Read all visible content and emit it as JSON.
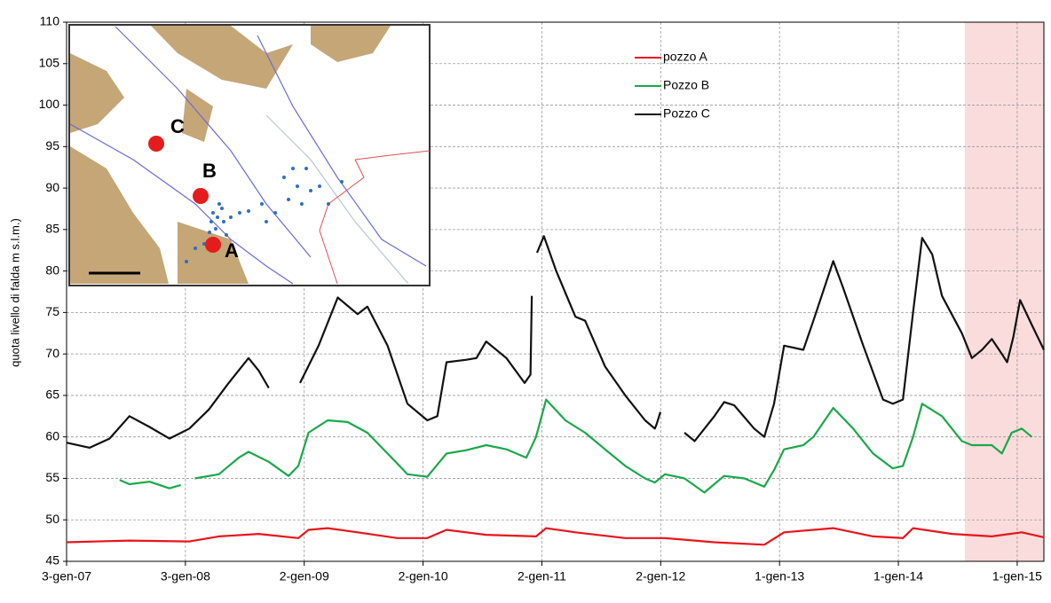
{
  "chart_data": {
    "type": "line",
    "y_label": "quota livello di falda m s.l.m.)",
    "ylim": [
      45,
      110
    ],
    "yticks": [
      45,
      50,
      55,
      60,
      65,
      70,
      75,
      80,
      85,
      90,
      95,
      100,
      105,
      110
    ],
    "xlim": [
      "2007-01-03",
      "2015-03-24"
    ],
    "xticks": [
      {
        "value": "2007-01-03",
        "label": "3-gen-07"
      },
      {
        "value": "2008-01-03",
        "label": "3-gen-08"
      },
      {
        "value": "2009-01-02",
        "label": "2-gen-09"
      },
      {
        "value": "2010-01-02",
        "label": "2-gen-10"
      },
      {
        "value": "2011-01-02",
        "label": "2-gen-11"
      },
      {
        "value": "2012-01-02",
        "label": "2-gen-12"
      },
      {
        "value": "2013-01-01",
        "label": "1-gen-13"
      },
      {
        "value": "2014-01-01",
        "label": "1-gen-14"
      },
      {
        "value": "2015-01-01",
        "label": "1-gen-15"
      }
    ],
    "grid": true,
    "legend": "top-right",
    "highlight": {
      "start": "2014-07-24",
      "end": "2015-03-24",
      "color": "#fbdcdc"
    },
    "annotations": [
      "C",
      "B",
      "A"
    ],
    "series": [
      {
        "name": "pozzo A",
        "color": "#e8141b",
        "x": [
          "2007-01-03",
          "2007-07-15",
          "2008-01-15",
          "2008-04-15",
          "2008-08-15",
          "2008-12-15",
          "2009-01-15",
          "2009-03-15",
          "2009-06-15",
          "2009-10-15",
          "2010-01-15",
          "2010-03-15",
          "2010-07-15",
          "2010-12-15",
          "2011-01-15",
          "2011-04-15",
          "2011-09-15",
          "2012-01-15",
          "2012-06-15",
          "2012-11-15",
          "2013-01-15",
          "2013-04-15",
          "2013-06-15",
          "2013-10-15",
          "2014-01-15",
          "2014-02-15",
          "2014-06-15",
          "2014-10-15",
          "2015-01-15",
          "2015-03-24"
        ],
        "values": [
          47.3,
          47.5,
          47.4,
          48,
          48.3,
          47.8,
          48.8,
          49,
          48.5,
          47.8,
          47.8,
          48.8,
          48.2,
          48,
          49,
          48.5,
          47.8,
          47.8,
          47.3,
          47,
          48.5,
          48.8,
          49,
          48,
          47.8,
          49,
          48.3,
          48,
          48.5,
          47.9
        ]
      },
      {
        "name": "Pozzo B",
        "color": "#1aa84a",
        "x": [
          "2007-06-15",
          "2007-07-15",
          "2007-09-15",
          "2007-11-15",
          "2007-12-20",
          "2008-01-10",
          "2008-02-01",
          "2008-04-15",
          "2008-06-15",
          "2008-07-15",
          "2008-09-15",
          "2008-11-15",
          "2008-12-15",
          "2009-01-15",
          "2009-03-15",
          "2009-05-15",
          "2009-07-15",
          "2009-09-15",
          "2009-11-15",
          "2010-01-15",
          "2010-03-15",
          "2010-05-15",
          "2010-07-15",
          "2010-09-15",
          "2010-11-15",
          "2010-12-15",
          "2011-01-15",
          "2011-03-15",
          "2011-05-15",
          "2011-07-15",
          "2011-09-15",
          "2011-11-15",
          "2011-12-15",
          "2012-01-15",
          "2012-03-15",
          "2012-05-15",
          "2012-07-15",
          "2012-09-15",
          "2012-11-15",
          "2012-12-15",
          "2013-01-15",
          "2013-03-15",
          "2013-04-15",
          "2013-06-15",
          "2013-08-15",
          "2013-10-15",
          "2013-12-15",
          "2014-01-15",
          "2014-02-15",
          "2014-03-15",
          "2014-05-15",
          "2014-07-15",
          "2014-08-15",
          "2014-10-15",
          "2014-11-15",
          "2014-12-15",
          "2015-01-15",
          "2015-02-15"
        ],
        "values": [
          54.8,
          54.3,
          54.6,
          53.8,
          54.2,
          null,
          55,
          55.5,
          57.5,
          58.2,
          57,
          55.3,
          56.5,
          60.5,
          62,
          61.8,
          60.5,
          58,
          55.5,
          55.2,
          58,
          58.4,
          59,
          58.5,
          57.5,
          60,
          64.5,
          62,
          60.5,
          58.5,
          56.5,
          55,
          54.5,
          55.5,
          55,
          53.3,
          55.3,
          55,
          54,
          56,
          58.5,
          59,
          60,
          63.5,
          61,
          58,
          56.2,
          56.5,
          60,
          64,
          62.5,
          59.5,
          59,
          59,
          58,
          60.5,
          61,
          60
        ]
      },
      {
        "name": "Pozzo C",
        "color": "#111111",
        "x": [
          "2007-01-03",
          "2007-03-15",
          "2007-05-15",
          "2007-07-15",
          "2007-09-15",
          "2007-11-15",
          "2008-01-15",
          "2008-03-15",
          "2008-05-15",
          "2008-07-15",
          "2008-08-15",
          "2008-09-15",
          "2008-11-01",
          "2008-12-20",
          "2009-02-15",
          "2009-04-15",
          "2009-06-15",
          "2009-07-15",
          "2009-09-15",
          "2009-11-15",
          "2010-01-15",
          "2010-02-15",
          "2010-03-15",
          "2010-05-15",
          "2010-06-15",
          "2010-07-15",
          "2010-09-15",
          "2010-11-10",
          "2010-11-28",
          "2010-12-02",
          "2010-12-10",
          "2010-12-18",
          "2011-01-08",
          "2011-02-15",
          "2011-04-15",
          "2011-05-15",
          "2011-07-15",
          "2011-09-15",
          "2011-11-15",
          "2011-12-15",
          "2011-12-20",
          "2012-01-01",
          "2012-02-10",
          "2012-03-15",
          "2012-04-15",
          "2012-06-15",
          "2012-07-15",
          "2012-08-15",
          "2012-10-15",
          "2012-11-15",
          "2012-12-15",
          "2013-01-15",
          "2013-03-15",
          "2013-04-15",
          "2013-06-15",
          "2013-07-15",
          "2013-09-15",
          "2013-11-15",
          "2013-12-15",
          "2014-01-15",
          "2014-02-15",
          "2014-03-15",
          "2014-04-15",
          "2014-05-15",
          "2014-07-15",
          "2014-08-15",
          "2014-09-15",
          "2014-10-15",
          "2014-11-15",
          "2014-12-01",
          "2014-12-20",
          "2015-01-10",
          "2015-02-15",
          "2015-03-24"
        ],
        "values": [
          59.3,
          58.7,
          59.8,
          62.5,
          61.2,
          59.8,
          61,
          63.3,
          66.5,
          69.5,
          68,
          65.9,
          null,
          66.5,
          71,
          76.8,
          74.8,
          75.7,
          71,
          64,
          62,
          62.5,
          69,
          69.3,
          69.5,
          71.5,
          69.5,
          66.5,
          67.5,
          77,
          null,
          82.2,
          84.2,
          80,
          74.5,
          74,
          68.5,
          65,
          62,
          61,
          61.5,
          63,
          null,
          60.5,
          59.5,
          62.5,
          64.2,
          63.8,
          61,
          60,
          64,
          71,
          70.5,
          74,
          81.2,
          78,
          71,
          64.5,
          64,
          64.5,
          75,
          84,
          82,
          77,
          72.5,
          69.5,
          70.5,
          71.8,
          70,
          69,
          72,
          76.5,
          73.5,
          70.5
        ]
      }
    ]
  }
}
